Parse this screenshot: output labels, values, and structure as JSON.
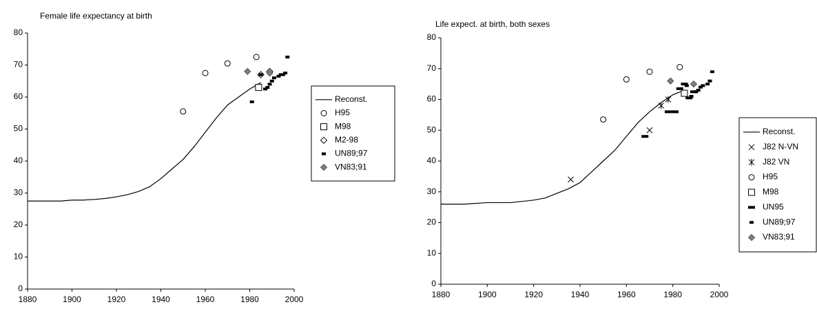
{
  "chart_data": [
    {
      "type": "scatter",
      "title": "Female life expectancy at birth",
      "xlim": [
        1880,
        2000
      ],
      "xticks": [
        1880,
        1900,
        1920,
        1940,
        1960,
        1980,
        2000
      ],
      "ylim": [
        0,
        80
      ],
      "yticks": [
        0,
        10,
        20,
        30,
        40,
        50,
        60,
        70,
        80
      ],
      "grid": false,
      "legend": "right",
      "series": [
        {
          "name": "Reconst.",
          "color": "#000000",
          "marker": "line",
          "x": [
            1880,
            1885,
            1890,
            1895,
            1900,
            1905,
            1910,
            1915,
            1920,
            1925,
            1930,
            1935,
            1940,
            1945,
            1950,
            1955,
            1960,
            1965,
            1970,
            1975,
            1980,
            1985
          ],
          "values": [
            27.5,
            27.5,
            27.5,
            27.5,
            27.8,
            27.8,
            28,
            28.3,
            28.8,
            29.5,
            30.5,
            32,
            34.5,
            37.5,
            40.5,
            44.5,
            49,
            53.5,
            57.5,
            60,
            62.5,
            64.5
          ]
        },
        {
          "name": "H95",
          "color": "#000000",
          "marker": "circle",
          "x": [
            1950,
            1960,
            1970,
            1983
          ],
          "values": [
            55.5,
            67.5,
            70.5,
            72.5
          ]
        },
        {
          "name": "M98",
          "color": "#000000",
          "marker": "square",
          "x": [
            1984
          ],
          "values": [
            63
          ]
        },
        {
          "name": "M2-98",
          "color": "#000000",
          "marker": "diamond",
          "x": [
            1985,
            1989
          ],
          "values": [
            67,
            68
          ]
        },
        {
          "name": "UN89;97",
          "color": "#000000",
          "marker": "dash",
          "x": [
            1981,
            1985,
            1987,
            1988,
            1989,
            1990,
            1991,
            1993,
            1994,
            1995,
            1996,
            1997
          ],
          "values": [
            58.5,
            67,
            62.5,
            63,
            64,
            65,
            66,
            66.5,
            67,
            67,
            67.5,
            72.5
          ]
        },
        {
          "name": "VN83;91",
          "color": "#808080",
          "marker": "diamond-filled",
          "x": [
            1979,
            1989
          ],
          "values": [
            68,
            67.5
          ]
        }
      ]
    },
    {
      "type": "scatter",
      "title": "Life expect. at birth, both sexes",
      "xlim": [
        1880,
        2000
      ],
      "xticks": [
        1880,
        1900,
        1920,
        1940,
        1960,
        1980,
        2000
      ],
      "ylim": [
        0,
        80
      ],
      "yticks": [
        0,
        10,
        20,
        30,
        40,
        50,
        60,
        70,
        80
      ],
      "grid": false,
      "legend": "right",
      "series": [
        {
          "name": "Reconst.",
          "color": "#000000",
          "marker": "line",
          "x": [
            1880,
            1890,
            1900,
            1910,
            1920,
            1925,
            1930,
            1935,
            1940,
            1945,
            1950,
            1955,
            1960,
            1965,
            1970,
            1975,
            1980,
            1985
          ],
          "values": [
            26,
            26,
            26.5,
            26.5,
            27.3,
            28,
            29.5,
            31,
            33,
            36.5,
            40,
            43.5,
            48,
            52.5,
            56,
            59,
            61.5,
            63
          ]
        },
        {
          "name": "J82 N-VN",
          "color": "#000000",
          "marker": "x",
          "x": [
            1936,
            1970
          ],
          "values": [
            34,
            50
          ]
        },
        {
          "name": "J82 VN",
          "color": "#000000",
          "marker": "star",
          "x": [
            1975,
            1978
          ],
          "values": [
            58,
            60
          ]
        },
        {
          "name": "H95",
          "color": "#000000",
          "marker": "circle",
          "x": [
            1950,
            1960,
            1970,
            1983
          ],
          "values": [
            53.5,
            66.5,
            69,
            70.5
          ]
        },
        {
          "name": "M98",
          "color": "#000000",
          "marker": "square",
          "x": [
            1985
          ],
          "values": [
            62
          ]
        },
        {
          "name": "UN95",
          "color": "#000000",
          "marker": "dash-wide",
          "x": [
            1968,
            1978,
            1981,
            1983,
            1985,
            1987,
            1989
          ],
          "values": [
            48,
            56,
            56,
            63.5,
            65,
            60.5,
            62.5
          ]
        },
        {
          "name": "UN89;97",
          "color": "#000000",
          "marker": "dash",
          "x": [
            1986,
            1988,
            1990,
            1991,
            1992,
            1993,
            1995,
            1996,
            1997
          ],
          "values": [
            64.5,
            61,
            62.5,
            63,
            64,
            64.5,
            65,
            66,
            69
          ]
        },
        {
          "name": "VN83;91",
          "color": "#808080",
          "marker": "diamond-filled",
          "x": [
            1979,
            1989
          ],
          "values": [
            66,
            65
          ]
        }
      ]
    }
  ]
}
